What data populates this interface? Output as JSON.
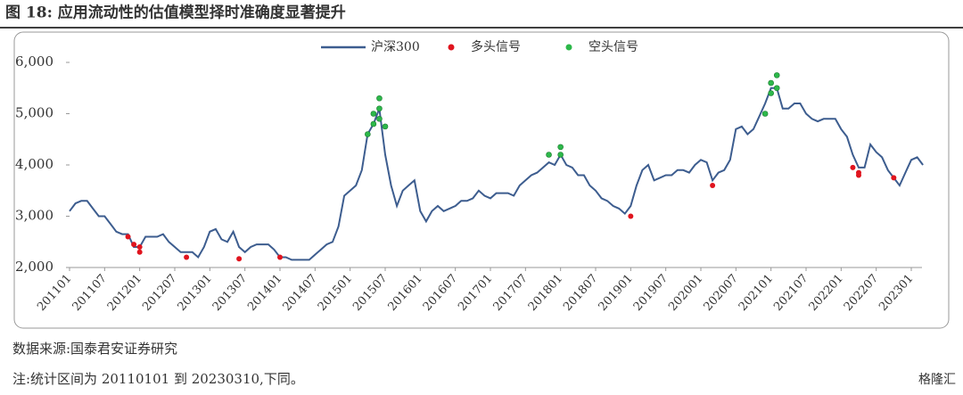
{
  "header": {
    "title": "图 18:  应用流动性的估值模型择时准确度显著提升"
  },
  "chart_data": {
    "type": "line",
    "x": [
      "201101",
      "201102",
      "201103",
      "201104",
      "201105",
      "201106",
      "201107",
      "201108",
      "201109",
      "201110",
      "201111",
      "201112",
      "201201",
      "201202",
      "201203",
      "201204",
      "201205",
      "201206",
      "201207",
      "201208",
      "201209",
      "201210",
      "201211",
      "201212",
      "201301",
      "201302",
      "201303",
      "201304",
      "201305",
      "201306",
      "201307",
      "201308",
      "201309",
      "201310",
      "201311",
      "201312",
      "201401",
      "201402",
      "201403",
      "201404",
      "201405",
      "201406",
      "201407",
      "201408",
      "201409",
      "201410",
      "201411",
      "201412",
      "201501",
      "201502",
      "201503",
      "201504",
      "201505",
      "201506",
      "201507",
      "201508",
      "201509",
      "201510",
      "201511",
      "201512",
      "201601",
      "201602",
      "201603",
      "201604",
      "201605",
      "201606",
      "201607",
      "201608",
      "201609",
      "201610",
      "201611",
      "201612",
      "201701",
      "201702",
      "201703",
      "201704",
      "201705",
      "201706",
      "201707",
      "201708",
      "201709",
      "201710",
      "201711",
      "201712",
      "201801",
      "201802",
      "201803",
      "201804",
      "201805",
      "201806",
      "201807",
      "201808",
      "201809",
      "201810",
      "201811",
      "201812",
      "201901",
      "201902",
      "201903",
      "201904",
      "201905",
      "201906",
      "201907",
      "201908",
      "201909",
      "201910",
      "201911",
      "201912",
      "202001",
      "202002",
      "202003",
      "202004",
      "202005",
      "202006",
      "202007",
      "202008",
      "202009",
      "202010",
      "202011",
      "202012",
      "202101",
      "202102",
      "202103",
      "202104",
      "202105",
      "202106",
      "202107",
      "202108",
      "202109",
      "202110",
      "202111",
      "202112",
      "202201",
      "202202",
      "202203",
      "202204",
      "202205",
      "202206",
      "202207",
      "202208",
      "202209",
      "202210",
      "202211",
      "202212",
      "202301",
      "202302",
      "202303"
    ],
    "series": [
      {
        "name": "沪深300",
        "color": "#3d5d8f",
        "values": [
          3100,
          3250,
          3300,
          3300,
          3150,
          3000,
          3000,
          2850,
          2700,
          2650,
          2650,
          2400,
          2400,
          2600,
          2600,
          2600,
          2650,
          2500,
          2400,
          2300,
          2300,
          2300,
          2200,
          2400,
          2700,
          2750,
          2550,
          2500,
          2700,
          2400,
          2300,
          2400,
          2450,
          2450,
          2450,
          2350,
          2200,
          2200,
          2150,
          2150,
          2150,
          2150,
          2250,
          2350,
          2450,
          2500,
          2800,
          3400,
          3500,
          3600,
          3900,
          4600,
          4800,
          5100,
          4200,
          3600,
          3200,
          3500,
          3600,
          3700,
          3100,
          2900,
          3100,
          3200,
          3100,
          3150,
          3200,
          3300,
          3300,
          3350,
          3500,
          3400,
          3350,
          3450,
          3450,
          3450,
          3400,
          3600,
          3700,
          3800,
          3850,
          3950,
          4050,
          4000,
          4200,
          4000,
          3950,
          3800,
          3800,
          3600,
          3500,
          3350,
          3300,
          3200,
          3150,
          3050,
          3200,
          3600,
          3900,
          4000,
          3700,
          3750,
          3800,
          3800,
          3900,
          3900,
          3850,
          4000,
          4100,
          4050,
          3700,
          3850,
          3900,
          4100,
          4700,
          4750,
          4600,
          4700,
          4950,
          5200,
          5500,
          5500,
          5100,
          5100,
          5200,
          5200,
          5000,
          4900,
          4850,
          4900,
          4900,
          4900,
          4700,
          4550,
          4200,
          3950,
          3950,
          4400,
          4250,
          4150,
          3900,
          3750,
          3600,
          3850,
          4100,
          4150,
          4000
        ]
      },
      {
        "name": "多头信号",
        "type": "scatter",
        "color": "#e0141e",
        "x": [
          "201111",
          "201112",
          "201201",
          "201201",
          "201209",
          "201306",
          "201401",
          "201901",
          "202003",
          "202203",
          "202204",
          "202204",
          "202210"
        ],
        "values": [
          2600,
          2450,
          2300,
          2400,
          2200,
          2170,
          2200,
          3000,
          3600,
          3950,
          3850,
          3800,
          3750
        ]
      },
      {
        "name": "空头信号",
        "type": "scatter",
        "color": "#2db84a",
        "x": [
          "201504",
          "201505",
          "201505",
          "201506",
          "201506",
          "201506",
          "201507",
          "201711",
          "201801",
          "201801",
          "202012",
          "202101",
          "202101",
          "202102",
          "202102"
        ],
        "values": [
          4600,
          4800,
          5000,
          5100,
          5300,
          4900,
          4750,
          4200,
          4200,
          4350,
          5000,
          5400,
          5600,
          5750,
          5500
        ]
      }
    ],
    "ylim": [
      2000,
      6000
    ],
    "yticks": [
      {
        "value": 2000,
        "label": "2,000"
      },
      {
        "value": 3000,
        "label": "3,000"
      },
      {
        "value": 4000,
        "label": "4,000"
      },
      {
        "value": 5000,
        "label": "5,000"
      },
      {
        "value": 6000,
        "label": "6,000"
      }
    ],
    "xticks": [
      "201101",
      "201107",
      "201201",
      "201207",
      "201301",
      "201307",
      "201401",
      "201407",
      "201501",
      "201507",
      "201601",
      "201607",
      "201701",
      "201707",
      "201801",
      "201807",
      "201901",
      "201907",
      "202001",
      "202007",
      "202101",
      "202107",
      "202201",
      "202207",
      "202301"
    ]
  },
  "source": "数据来源:国泰君安证券研究",
  "note": "注:统计区间为 20110101 到 20230310,下同。",
  "watermark": "格隆汇"
}
